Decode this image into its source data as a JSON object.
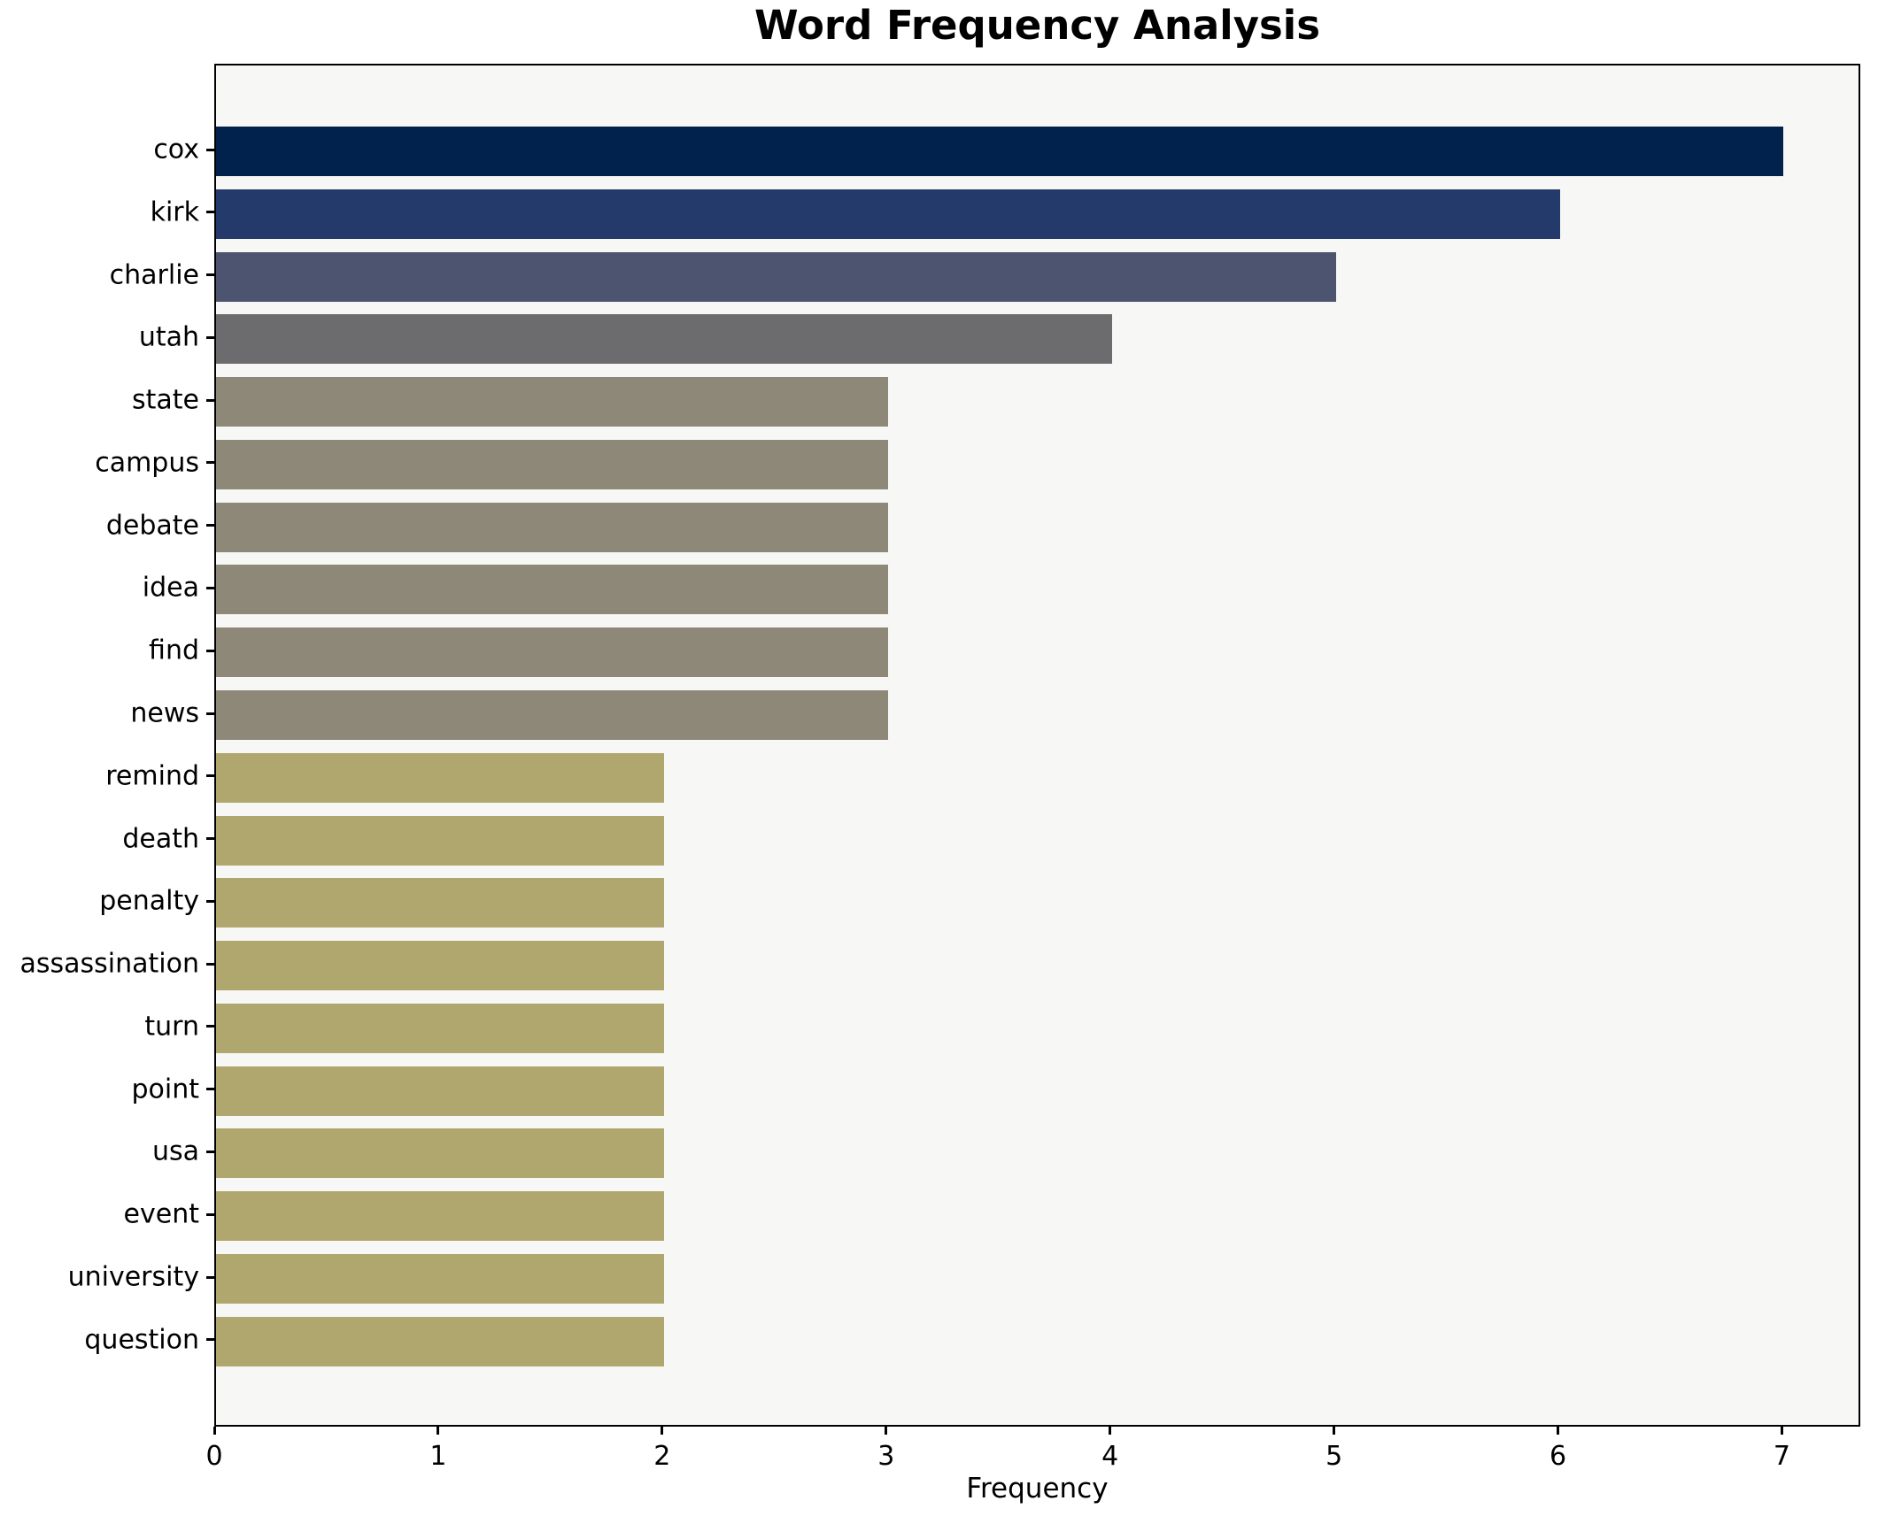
{
  "title": "Word Frequency Analysis",
  "colors": {
    "figure_background": "#ffffff",
    "plot_background": "#f7f7f5",
    "spine": "#000000",
    "text": "#000000"
  },
  "chart_data": {
    "type": "bar",
    "orientation": "horizontal",
    "title": "Word Frequency Analysis",
    "xlabel": "Frequency",
    "ylabel": "",
    "grid": false,
    "legend": null,
    "xlim": [
      0,
      7.35
    ],
    "x_ticks": [
      "0",
      "1",
      "2",
      "3",
      "4",
      "5",
      "6",
      "7"
    ],
    "x_tick_values": [
      0,
      1,
      2,
      3,
      4,
      5,
      6,
      7
    ],
    "categories": [
      "cox",
      "kirk",
      "charlie",
      "utah",
      "state",
      "campus",
      "debate",
      "idea",
      "find",
      "news",
      "remind",
      "death",
      "penalty",
      "assassination",
      "turn",
      "point",
      "usa",
      "event",
      "university",
      "question"
    ],
    "values": [
      7,
      6,
      5,
      4,
      3,
      3,
      3,
      3,
      3,
      3,
      2,
      2,
      2,
      2,
      2,
      2,
      2,
      2,
      2,
      2
    ],
    "bar_colors": [
      "#02224e",
      "#243a6b",
      "#4c5470",
      "#6c6c6e",
      "#8d8877",
      "#8d8877",
      "#8d8877",
      "#8d8877",
      "#8d8877",
      "#8d8877",
      "#b0a76e",
      "#b0a76e",
      "#b0a76e",
      "#b0a76e",
      "#b0a76e",
      "#b0a76e",
      "#b0a76e",
      "#b0a76e",
      "#b0a76e",
      "#b0a76e"
    ]
  }
}
